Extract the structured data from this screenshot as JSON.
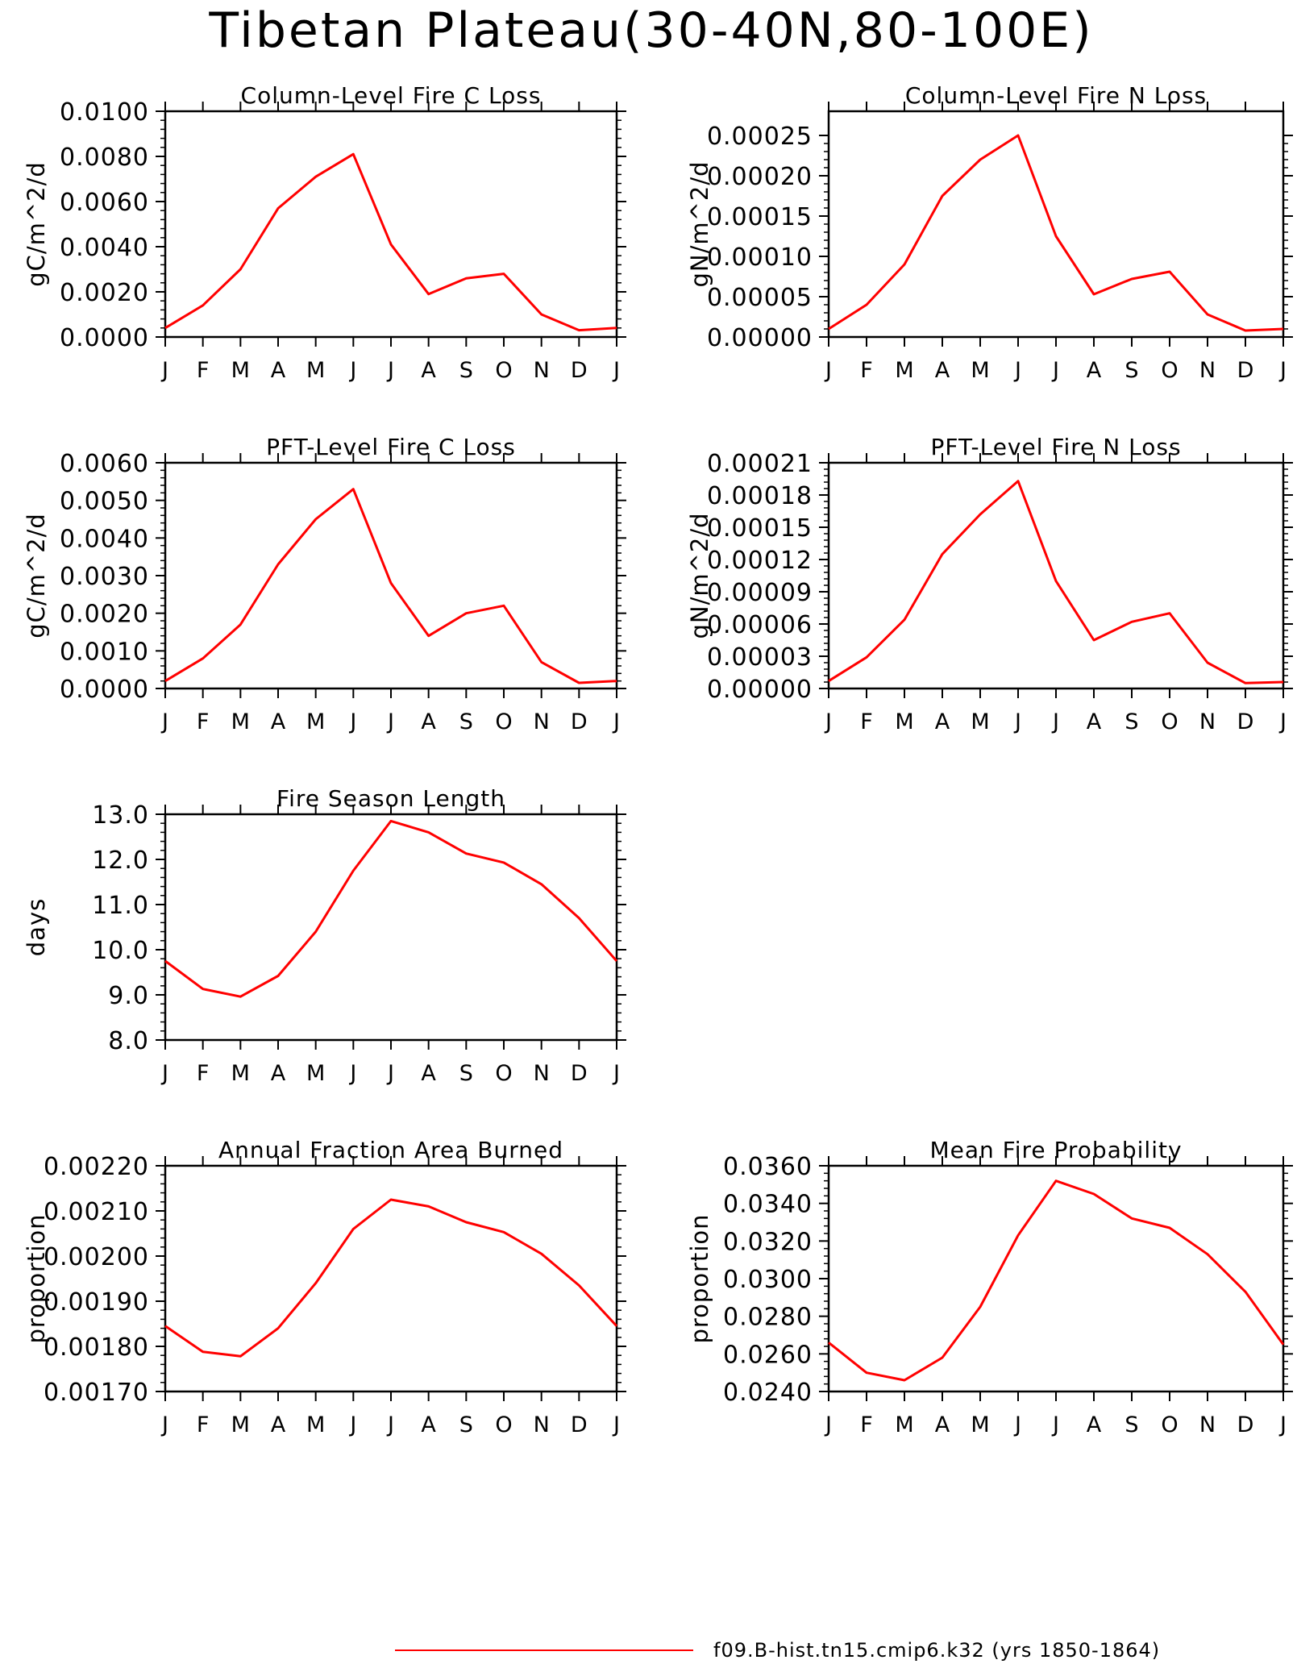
{
  "title": "Tibetan Plateau(30-40N,80-100E)",
  "legend": {
    "label": "f09.B-hist.tn15.cmip6.k32 (yrs 1850-1864)",
    "color": "#ff0000"
  },
  "chart_data": [
    {
      "type": "line",
      "title": "Column-Level Fire C Loss",
      "ylabel": "gC/m^2/d",
      "categories": [
        "J",
        "F",
        "M",
        "A",
        "M",
        "J",
        "J",
        "A",
        "S",
        "O",
        "N",
        "D",
        "J"
      ],
      "ylim": [
        0.0,
        0.01
      ],
      "yticks": [
        0.0,
        0.002,
        0.004,
        0.006,
        0.008,
        0.01
      ],
      "ytick_labels": [
        "0.0000",
        "0.0020",
        "0.0040",
        "0.0060",
        "0.0080",
        "0.0100"
      ],
      "series": [
        {
          "values": [
            0.0004,
            0.0014,
            0.003,
            0.0057,
            0.0071,
            0.0081,
            0.0041,
            0.0019,
            0.0026,
            0.0028,
            0.001,
            0.0003,
            0.0004
          ]
        }
      ]
    },
    {
      "type": "line",
      "title": "Column-Level Fire N Loss",
      "ylabel": "gN/m^2/d",
      "categories": [
        "J",
        "F",
        "M",
        "A",
        "M",
        "J",
        "J",
        "A",
        "S",
        "O",
        "N",
        "D",
        "J"
      ],
      "ylim": [
        0.0,
        0.00028
      ],
      "yticks": [
        0.0,
        5e-05,
        0.0001,
        0.00015,
        0.0002,
        0.00025
      ],
      "ytick_labels": [
        "0.00000",
        "0.00005",
        "0.00010",
        "0.00015",
        "0.00020",
        "0.00025"
      ],
      "series": [
        {
          "values": [
            1e-05,
            4e-05,
            9e-05,
            0.000175,
            0.00022,
            0.00025,
            0.000125,
            5.3e-05,
            7.2e-05,
            8.1e-05,
            2.8e-05,
            8e-06,
            1e-05
          ]
        }
      ]
    },
    {
      "type": "line",
      "title": "PFT-Level Fire C Loss",
      "ylabel": "gC/m^2/d",
      "categories": [
        "J",
        "F",
        "M",
        "A",
        "M",
        "J",
        "J",
        "A",
        "S",
        "O",
        "N",
        "D",
        "J"
      ],
      "ylim": [
        0.0,
        0.006
      ],
      "yticks": [
        0.0,
        0.001,
        0.002,
        0.003,
        0.004,
        0.005,
        0.006
      ],
      "ytick_labels": [
        "0.0000",
        "0.0010",
        "0.0020",
        "0.0030",
        "0.0040",
        "0.0050",
        "0.0060"
      ],
      "series": [
        {
          "values": [
            0.0002,
            0.0008,
            0.0017,
            0.0033,
            0.0045,
            0.0053,
            0.0028,
            0.0014,
            0.002,
            0.0022,
            0.0007,
            0.00015,
            0.0002
          ]
        }
      ]
    },
    {
      "type": "line",
      "title": "PFT-Level Fire N Loss",
      "ylabel": "gN/m^2/d",
      "categories": [
        "J",
        "F",
        "M",
        "A",
        "M",
        "J",
        "J",
        "A",
        "S",
        "O",
        "N",
        "D",
        "J"
      ],
      "ylim": [
        0.0,
        0.00021
      ],
      "yticks": [
        0.0,
        3e-05,
        6e-05,
        9e-05,
        0.00012,
        0.00015,
        0.00018,
        0.00021
      ],
      "ytick_labels": [
        "0.00000",
        "0.00003",
        "0.00006",
        "0.00009",
        "0.00012",
        "0.00015",
        "0.00018",
        "0.00021"
      ],
      "series": [
        {
          "values": [
            7e-06,
            2.9e-05,
            6.4e-05,
            0.000125,
            0.000162,
            0.000193,
            0.0001,
            4.5e-05,
            6.2e-05,
            7e-05,
            2.4e-05,
            5e-06,
            6e-06
          ]
        }
      ]
    },
    {
      "type": "line",
      "title": "Fire Season Length",
      "ylabel": "days",
      "categories": [
        "J",
        "F",
        "M",
        "A",
        "M",
        "J",
        "J",
        "A",
        "S",
        "O",
        "N",
        "D",
        "J"
      ],
      "ylim": [
        8.0,
        13.0
      ],
      "yticks": [
        8.0,
        9.0,
        10.0,
        11.0,
        12.0,
        13.0
      ],
      "ytick_labels": [
        "8.0",
        "9.0",
        "10.0",
        "11.0",
        "12.0",
        "13.0"
      ],
      "series": [
        {
          "values": [
            9.75,
            9.13,
            8.96,
            9.42,
            10.4,
            11.75,
            12.85,
            12.6,
            12.13,
            11.93,
            11.45,
            10.7,
            9.75
          ]
        }
      ]
    },
    {
      "type": "line",
      "title": "Annual Fraction Area Burned",
      "ylabel": "proportion",
      "categories": [
        "J",
        "F",
        "M",
        "A",
        "M",
        "J",
        "J",
        "A",
        "S",
        "O",
        "N",
        "D",
        "J"
      ],
      "ylim": [
        0.0017,
        0.0022
      ],
      "yticks": [
        0.0017,
        0.0018,
        0.0019,
        0.002,
        0.0021,
        0.0022
      ],
      "ytick_labels": [
        "0.00170",
        "0.00180",
        "0.00190",
        "0.00200",
        "0.00210",
        "0.00220"
      ],
      "series": [
        {
          "values": [
            0.001845,
            0.001788,
            0.001778,
            0.00184,
            0.00194,
            0.00206,
            0.002125,
            0.00211,
            0.002075,
            0.002053,
            0.002005,
            0.001935,
            0.001845
          ]
        }
      ]
    },
    {
      "type": "line",
      "title": "Mean Fire Probability",
      "ylabel": "proportion",
      "categories": [
        "J",
        "F",
        "M",
        "A",
        "M",
        "J",
        "J",
        "A",
        "S",
        "O",
        "N",
        "D",
        "J"
      ],
      "ylim": [
        0.024,
        0.036
      ],
      "yticks": [
        0.024,
        0.026,
        0.028,
        0.03,
        0.032,
        0.034,
        0.036
      ],
      "ytick_labels": [
        "0.0240",
        "0.0260",
        "0.0280",
        "0.0300",
        "0.0320",
        "0.0340",
        "0.0360"
      ],
      "series": [
        {
          "values": [
            0.0266,
            0.025,
            0.0246,
            0.0258,
            0.0285,
            0.0323,
            0.0352,
            0.0345,
            0.0332,
            0.0327,
            0.0313,
            0.0293,
            0.0265
          ]
        }
      ]
    }
  ]
}
